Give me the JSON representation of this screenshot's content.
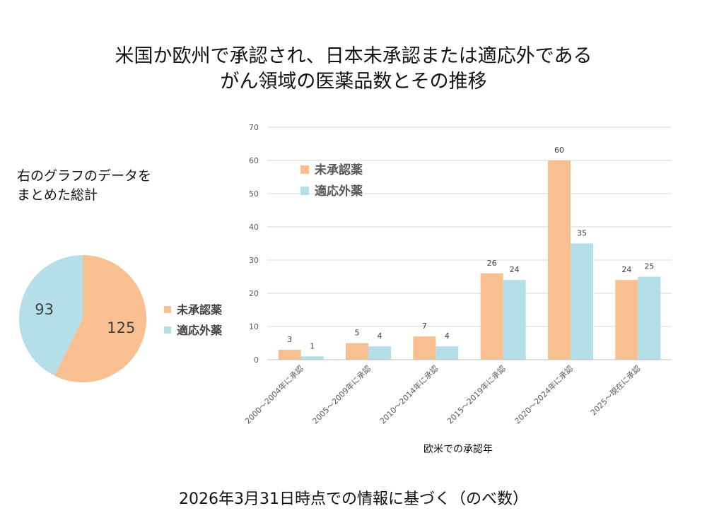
{
  "title_line1": "米国か欧州で承認され、日本未承認または適応外である",
  "title_line2": "がん領域の医薬品数とその推移",
  "pie_caption_line1": "右のグラフのデータを",
  "pie_caption_line2": "まとめた総計",
  "footer": "2026年3月31日時点での情報に基づく（のべ数）",
  "colors": {
    "unapproved": "#F8C090",
    "offlabel": "#B4DEE8",
    "grid": "#D9D9D9"
  },
  "chart_data": [
    {
      "type": "pie",
      "categories": [
        "未承認薬",
        "適応外薬"
      ],
      "values": [
        125,
        93
      ],
      "legend_position": "right"
    },
    {
      "type": "bar",
      "categories": [
        "2000～2004年に承認",
        "2005～2009年に承認",
        "2010～2014年に承認",
        "2015～2019年に承認",
        "2020～2024年に承認",
        "2025～現在に承認"
      ],
      "series": [
        {
          "name": "未承認薬",
          "values": [
            3,
            5,
            7,
            26,
            60,
            24
          ]
        },
        {
          "name": "適応外薬",
          "values": [
            1,
            4,
            4,
            24,
            35,
            25
          ]
        }
      ],
      "xlabel": "欧米での承認年",
      "ylabel": "",
      "ylim": [
        0,
        70
      ],
      "yticks": [
        0,
        10,
        20,
        30,
        40,
        50,
        60,
        70
      ],
      "grid": true,
      "legend_position": "top-left"
    }
  ]
}
